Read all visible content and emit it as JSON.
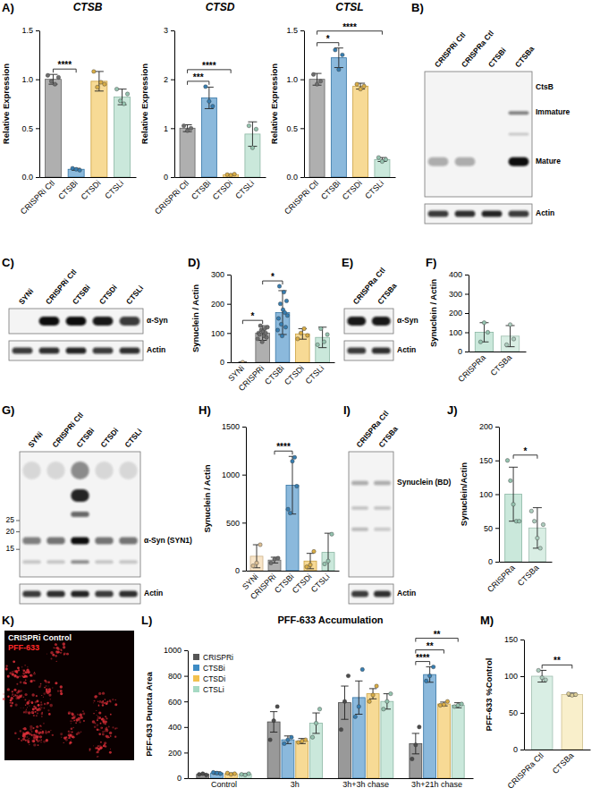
{
  "panel_labels": [
    "A)",
    "B)",
    "C)",
    "D)",
    "E)",
    "F)",
    "G)",
    "H)",
    "I)",
    "J)",
    "K)",
    "L)",
    "M)"
  ],
  "chart_data": [
    {
      "type": "bar",
      "title": "CTSB",
      "y_label": "Relative Expression",
      "categories": [
        "CRISPRi Ctl",
        "CTSBi",
        "CTSDi",
        "CTSLi"
      ],
      "values": [
        1.0,
        0.08,
        0.98,
        0.82
      ],
      "errors": [
        0.05,
        0.01,
        0.1,
        0.08
      ],
      "points": [
        [
          1.04,
          0.98,
          0.95,
          1.02
        ],
        [
          0.09,
          0.08,
          0.07
        ],
        [
          1.08,
          0.92,
          0.97,
          0.95
        ],
        [
          0.9,
          0.78,
          0.75,
          0.85
        ]
      ],
      "colors": [
        "#7a7a7a",
        "#3d8bc4",
        "#f2c14e",
        "#a6d9c3"
      ],
      "ylim": [
        0,
        1.5
      ],
      "yticks": [
        {
          "value": 0,
          "label": "0.0"
        },
        {
          "value": 0.5,
          "label": "0.5"
        },
        {
          "value": 1,
          "label": "1.0"
        },
        {
          "value": 1.5,
          "label": "1.5"
        }
      ],
      "annotations": [
        {
          "from": 0,
          "to": 1,
          "text": "****"
        }
      ]
    },
    {
      "type": "bar",
      "title": "CTSD",
      "y_label": "Relative Expression",
      "categories": [
        "CRISPRi Ctl",
        "CTSBi",
        "CTSDi",
        "CTSLi"
      ],
      "values": [
        1.0,
        1.62,
        0.05,
        0.88
      ],
      "errors": [
        0.07,
        0.22,
        0.01,
        0.25
      ],
      "points": [
        [
          1.05,
          0.95,
          1.0
        ],
        [
          1.85,
          1.55,
          1.45
        ],
        [
          0.05,
          0.04,
          0.06
        ],
        [
          1.05,
          0.6,
          0.98
        ]
      ],
      "colors": [
        "#7a7a7a",
        "#3d8bc4",
        "#f2c14e",
        "#a6d9c3"
      ],
      "ylim": [
        0,
        3
      ],
      "yticks": [
        0,
        1,
        2,
        3
      ],
      "annotations": [
        {
          "from": 0,
          "to": 1,
          "text": "***"
        },
        {
          "from": 0,
          "to": 2,
          "text": "****"
        }
      ]
    },
    {
      "type": "bar",
      "title": "CTSL",
      "y_label": "Relative Expression",
      "categories": [
        "CRISPRi Ctl",
        "CTSBi",
        "CTSDi",
        "CTSLi"
      ],
      "values": [
        1.0,
        1.22,
        0.93,
        0.18
      ],
      "errors": [
        0.06,
        0.1,
        0.03,
        0.02
      ],
      "points": [
        [
          1.05,
          0.95,
          0.98
        ],
        [
          1.3,
          1.1,
          1.25
        ],
        [
          0.95,
          0.9,
          0.93
        ],
        [
          0.2,
          0.16,
          0.18
        ]
      ],
      "colors": [
        "#7a7a7a",
        "#3d8bc4",
        "#f2c14e",
        "#a6d9c3"
      ],
      "ylim": [
        0,
        1.5
      ],
      "yticks": [
        {
          "value": 0,
          "label": "0.0"
        },
        {
          "value": 0.5,
          "label": "0.5"
        },
        {
          "value": 1,
          "label": "1.0"
        },
        {
          "value": 1.5,
          "label": "1.5"
        }
      ],
      "annotations": [
        {
          "from": 0,
          "to": 1,
          "text": "*"
        },
        {
          "from": 0,
          "to": 3,
          "text": "****"
        }
      ]
    },
    {
      "type": "bar",
      "y_label": "Synuclein / Actin",
      "categories": [
        "SYNi",
        "CRISPRi",
        "CTSBi",
        "CTSDi",
        "CTSLi"
      ],
      "values": [
        0,
        100,
        170,
        97,
        85
      ],
      "errors": [
        0,
        25,
        75,
        18,
        35
      ],
      "points": [
        [
          0
        ],
        [
          80,
          100,
          95,
          125,
          110,
          70,
          105,
          90,
          115,
          100,
          85,
          120
        ],
        [
          110,
          150,
          260,
          200,
          130,
          90,
          180,
          240,
          170,
          120,
          210,
          160
        ],
        [
          80,
          100,
          115,
          92
        ],
        [
          60,
          115,
          70,
          95
        ]
      ],
      "colors": [
        "#f4d3a4",
        "#7a7a7a",
        "#3d8bc4",
        "#f2c14e",
        "#a6d9c3"
      ],
      "ylim": [
        0,
        300
      ],
      "yticks": [
        0,
        100,
        200,
        300
      ],
      "annotations": [
        {
          "from": 0,
          "to": 1,
          "text": "*"
        },
        {
          "from": 1,
          "to": 2,
          "text": "*"
        }
      ]
    },
    {
      "type": "bar",
      "y_label": "Synuclein / Actin",
      "categories": [
        "CRISPRa",
        "CTSBa"
      ],
      "values": [
        100,
        80
      ],
      "errors": [
        50,
        55
      ],
      "points": [
        [
          50,
          150,
          100
        ],
        [
          35,
          140,
          65
        ]
      ],
      "colors": [
        "#a6d9c3",
        "#bfe3d2"
      ],
      "ylim": [
        0,
        400
      ],
      "yticks": [
        0,
        100,
        200,
        300,
        400
      ]
    },
    {
      "type": "bar",
      "y_label": "Synuclein / Actin",
      "categories": [
        "SYNi",
        "CRISPRi",
        "CTSBi",
        "CTSDi",
        "CTSLi"
      ],
      "values": [
        150,
        110,
        890,
        100,
        190
      ],
      "errors": [
        120,
        30,
        300,
        80,
        200
      ],
      "points": [
        [
          50,
          80,
          270
        ],
        [
          80,
          120,
          130
        ],
        [
          640,
          600,
          1140,
          1180,
          880
        ],
        [
          40,
          60,
          200
        ],
        [
          70,
          100,
          380
        ]
      ],
      "colors": [
        "#f4d3a4",
        "#7a7a7a",
        "#3d8bc4",
        "#f2c14e",
        "#a6d9c3"
      ],
      "ylim": [
        0,
        1500
      ],
      "yticks": [
        0,
        500,
        1000,
        1500
      ],
      "annotations": [
        {
          "from": 1,
          "to": 2,
          "text": "****"
        }
      ]
    },
    {
      "type": "bar",
      "y_label": "Synuclein/Actin",
      "categories": [
        "CRISPRa",
        "CTSBa"
      ],
      "values": [
        100,
        50
      ],
      "errors": [
        40,
        30
      ],
      "points": [
        [
          150,
          120,
          85,
          60,
          60
        ],
        [
          75,
          60,
          35,
          20,
          55
        ]
      ],
      "colors": [
        "#a6d9c3",
        "#bfe3d2"
      ],
      "ylim": [
        0,
        200
      ],
      "yticks": [
        0,
        50,
        100,
        150,
        200
      ],
      "annotations": [
        {
          "from": 0,
          "to": 1,
          "text": "*"
        }
      ]
    },
    {
      "type": "bar",
      "title": "PFF-633 Accumulation",
      "y_label": "PFF-633 Puncta Area",
      "categories": [
        "Control",
        "3h",
        "3h+3h chase",
        "3h+21h chase"
      ],
      "series": [
        {
          "name": "CRISPRi",
          "color": "#555555",
          "values": [
            30,
            440,
            590,
            270
          ],
          "errors": [
            5,
            80,
            130,
            80
          ],
          "points": [
            [
              30,
              35,
              25
            ],
            [
              300,
              450,
              560
            ],
            [
              380,
              600,
              800
            ],
            [
              150,
              260,
              400
            ]
          ]
        },
        {
          "name": "CTSBi",
          "color": "#3d8bc4",
          "values": [
            40,
            300,
            630,
            810
          ],
          "errors": [
            10,
            30,
            130,
            60
          ],
          "points": [
            [
              45,
              40,
              35
            ],
            [
              270,
              300,
              320
            ],
            [
              480,
              560,
              850
            ],
            [
              760,
              800,
              870
            ]
          ]
        },
        {
          "name": "CTSDi",
          "color": "#f2c14e",
          "values": [
            35,
            290,
            660,
            580
          ],
          "errors": [
            5,
            20,
            40,
            15
          ],
          "points": [
            [
              40,
              30,
              35
            ],
            [
              280,
              290,
              300
            ],
            [
              600,
              650,
              720
            ],
            [
              570,
              575,
              600
            ]
          ]
        },
        {
          "name": "CTSLi",
          "color": "#a6d9c3",
          "values": [
            30,
            430,
            600,
            570
          ],
          "errors": [
            5,
            80,
            60,
            20
          ],
          "points": [
            [
              30,
              25,
              35
            ],
            [
              320,
              430,
              540
            ],
            [
              540,
              600,
              660
            ],
            [
              560,
              570,
              580
            ]
          ]
        }
      ],
      "ylim": [
        0,
        1000
      ],
      "yticks": [
        0,
        200,
        400,
        600,
        800,
        1000
      ],
      "legend": "top-left",
      "annotations": [
        {
          "category": 3,
          "from": 0,
          "to": 1,
          "text": "****"
        },
        {
          "category": 3,
          "from": 0,
          "to": 2,
          "text": "**"
        },
        {
          "category": 3,
          "from": 0,
          "to": 3,
          "text": "**"
        }
      ]
    },
    {
      "type": "bar",
      "y_label": "PFF-633 %Control",
      "categories": [
        "CRISPRa Ctl",
        "CTSBa"
      ],
      "values": [
        100,
        75
      ],
      "errors": [
        8,
        2
      ],
      "points": [
        [
          108,
          98,
          95
        ],
        [
          76,
          74,
          75
        ]
      ],
      "colors": [
        "#bfe3d2",
        "#f5e4a8"
      ],
      "ylim": [
        0,
        150
      ],
      "yticks": [
        0,
        50,
        100,
        150
      ],
      "annotations": [
        {
          "from": 0,
          "to": 1,
          "text": "**"
        }
      ]
    }
  ],
  "blots": [
    {
      "lanes": [
        "CRISPRi Ctl",
        "CRISPRa Ctl",
        "CTSBi",
        "CTSBa"
      ],
      "strips": [
        {
          "labels": [
            "CtsB",
            "Immature",
            "Mature"
          ]
        },
        {
          "labels": [
            "Actin"
          ]
        }
      ]
    },
    {
      "lanes": [
        "SYNi",
        "CRISPRi Ctl",
        "CTSBi",
        "CTSDi",
        "CTSLi"
      ],
      "strips": [
        {
          "labels": [
            "α-Syn"
          ]
        },
        {
          "labels": [
            "Actin"
          ]
        }
      ]
    },
    {
      "lanes": [
        "CRISPRa Ctl",
        "CTSBa"
      ],
      "strips": [
        {
          "labels": [
            "α-Syn"
          ]
        },
        {
          "labels": [
            "Actin"
          ]
        }
      ]
    },
    {
      "lanes": [
        "SYNi",
        "CRISPRi Ctl",
        "CTSBi",
        "CTSDi",
        "CTSLi"
      ],
      "markers": [
        "25",
        "20",
        "15"
      ],
      "strips": [
        {
          "labels": [
            "α-Syn (SYN1)"
          ]
        },
        {
          "labels": [
            "Actin"
          ]
        }
      ]
    },
    {
      "lanes": [
        "CRISPRa Ctl",
        "CTSBa"
      ],
      "strips": [
        {
          "labels": [
            "Synuclein (BD)"
          ]
        },
        {
          "labels": [
            "Actin"
          ]
        }
      ]
    }
  ],
  "image": {
    "label": "CRISPRi Control",
    "channel": "PFF-633"
  }
}
